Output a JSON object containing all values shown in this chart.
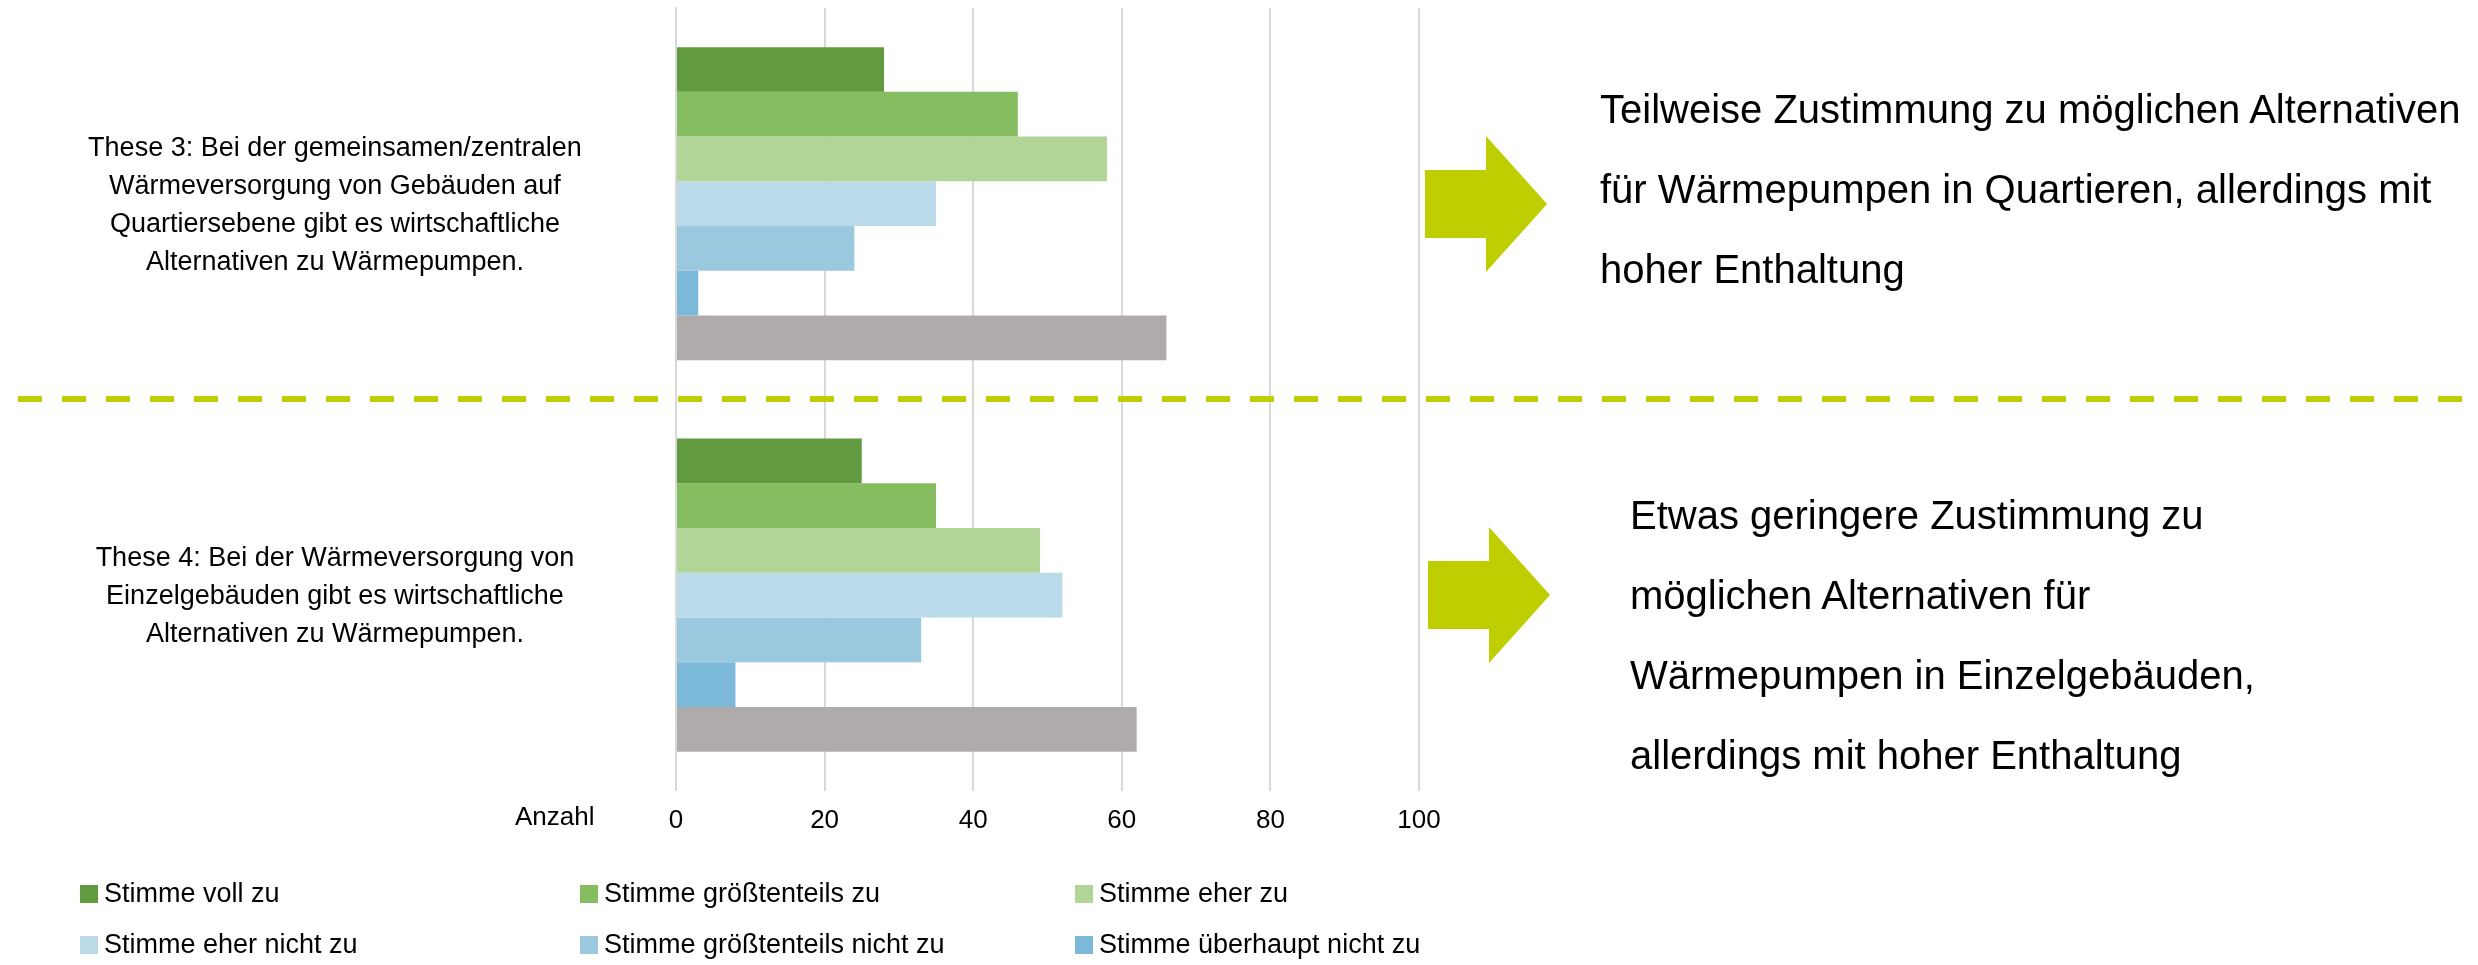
{
  "chart_data": {
    "type": "bar",
    "orientation": "horizontal",
    "xlabel": "Anzahl",
    "categories": [
      "These 3: Bei der gemeinsamen/zentralen Wärmeversorgung von Gebäuden auf Quartiersebene gibt es wirtschaftliche Alternativen zu Wärmepumpen.",
      "These 4: Bei der Wärmeversorgung von Einzelgebäuden gibt es wirtschaftliche Alternativen zu Wärmepumpen."
    ],
    "series": [
      {
        "name": "Stimme voll zu",
        "color": "#629a3f",
        "values": [
          28,
          25
        ]
      },
      {
        "name": "Stimme größtenteils zu",
        "color": "#86bd60",
        "values": [
          46,
          35
        ]
      },
      {
        "name": "Stimme eher zu",
        "color": "#b1d597",
        "values": [
          58,
          49
        ]
      },
      {
        "name": "Stimme eher nicht zu",
        "color": "#bad9e9",
        "values": [
          35,
          52
        ]
      },
      {
        "name": "Stimme größtenteils nicht zu",
        "color": "#9ac8df",
        "values": [
          24,
          33
        ]
      },
      {
        "name": "Stimme überhaupt nicht zu",
        "color": "#7cb8d8",
        "values": [
          3,
          8
        ]
      },
      {
        "color": "#afabaa",
        "values": [
          66,
          62
        ]
      }
    ],
    "xlim": [
      0,
      100
    ],
    "xticks": [
      0,
      20,
      40,
      60,
      80,
      100
    ],
    "grid": "x",
    "legend": "bottom",
    "annotations": [
      "Teilweise Zustimmung zu möglichen Alternativen für Wärmepumpen in Quartieren, allerdings mit hoher Enthaltung",
      "Etwas geringere Zustimmung zu möglichen Alternativen für Wärmepumpen in Einzelgebäuden, allerdings mit hoher Enthaltung"
    ]
  }
}
